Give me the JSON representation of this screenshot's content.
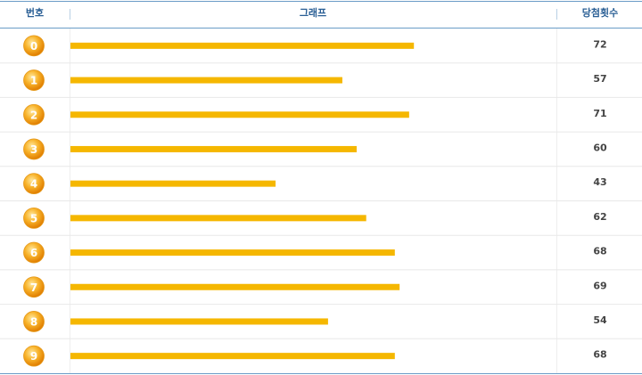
{
  "table": {
    "headers": [
      "번호",
      "그래프",
      "당첨횟수"
    ],
    "rows": [
      {
        "number": "0",
        "count": 72
      },
      {
        "number": "1",
        "count": 57
      },
      {
        "number": "2",
        "count": 71
      },
      {
        "number": "3",
        "count": 60
      },
      {
        "number": "4",
        "count": 43
      },
      {
        "number": "5",
        "count": 62
      },
      {
        "number": "6",
        "count": 68
      },
      {
        "number": "7",
        "count": 69
      },
      {
        "number": "8",
        "count": 54
      },
      {
        "number": "9",
        "count": 68
      }
    ]
  }
}
